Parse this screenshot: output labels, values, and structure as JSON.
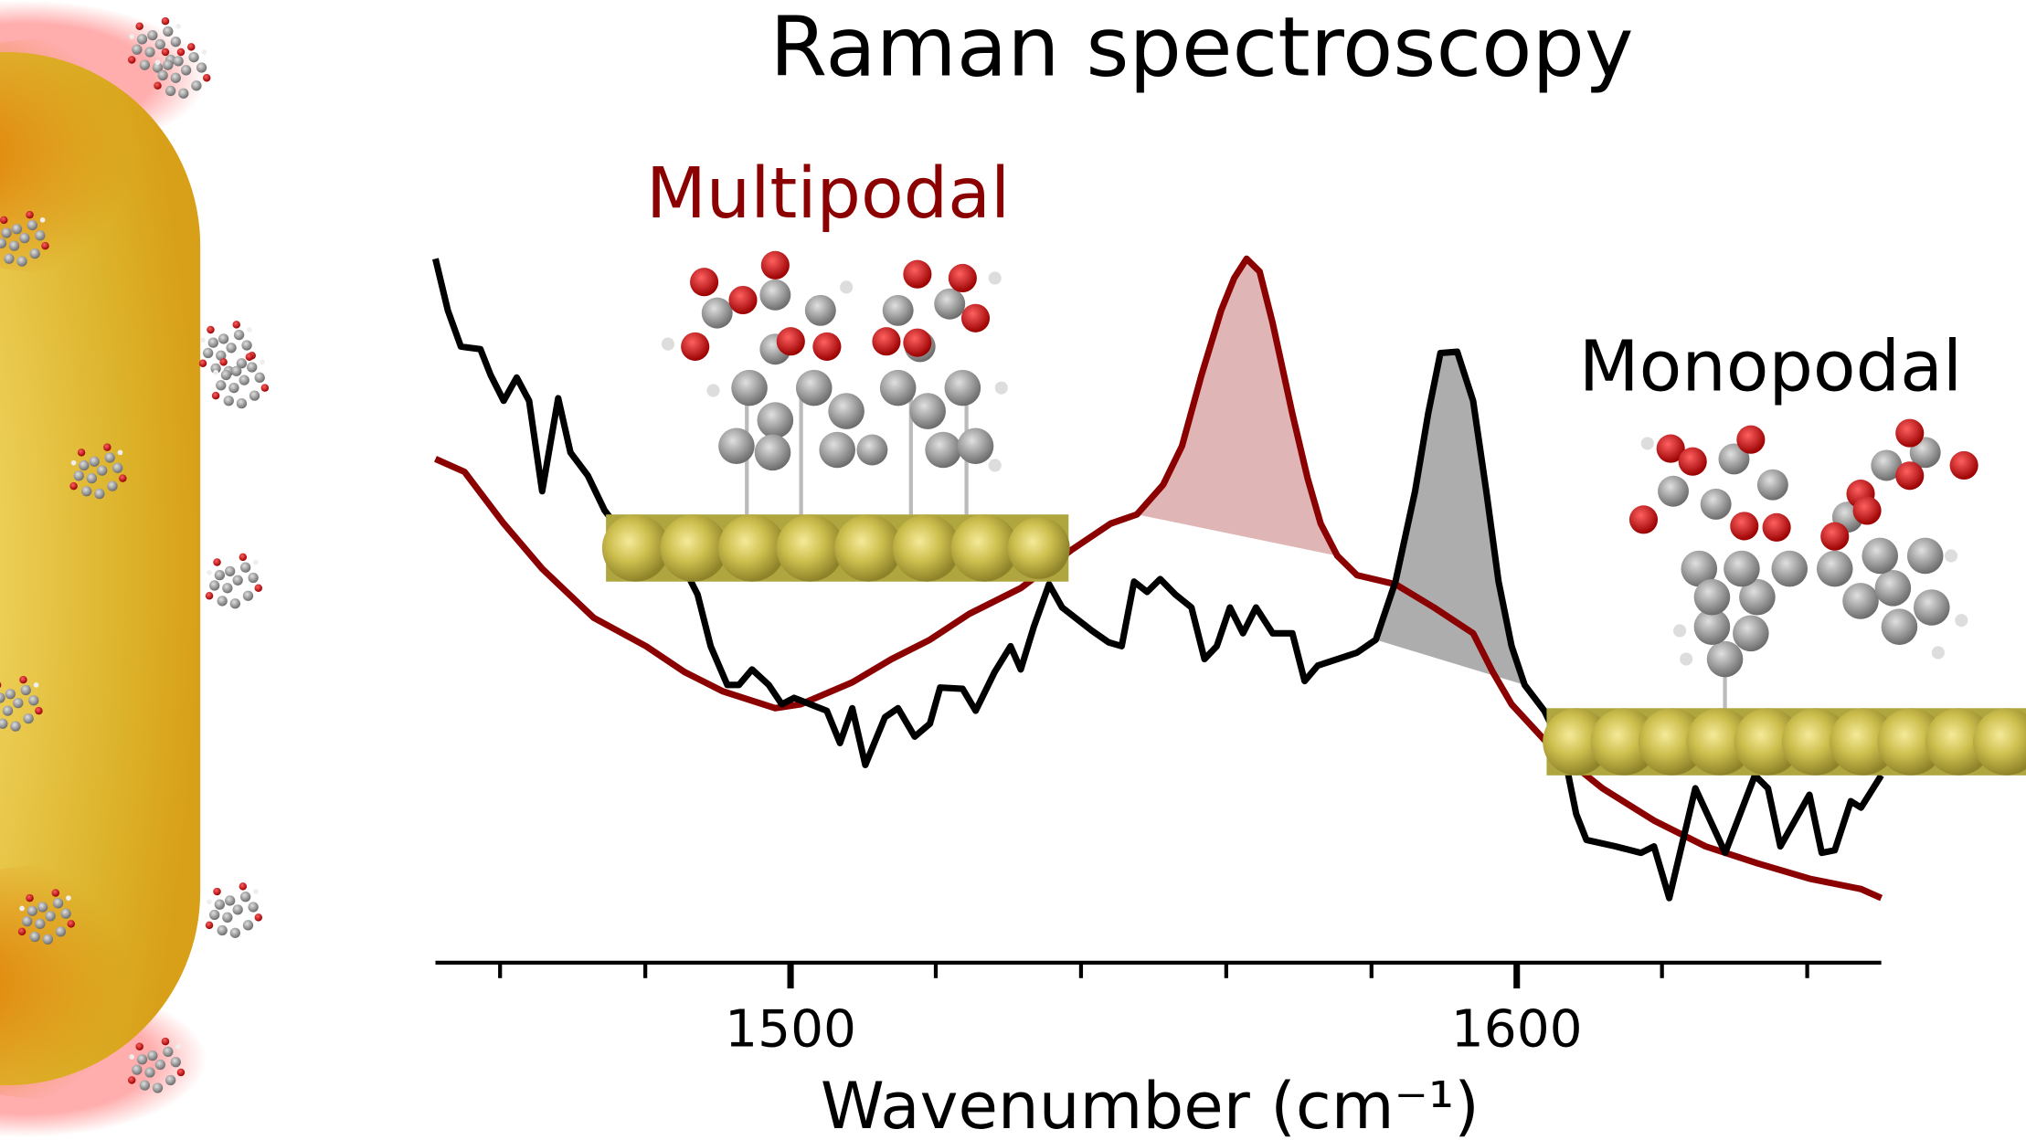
{
  "chart_data": {
    "type": "line",
    "title": "Raman spectroscopy",
    "x_label": "Wavenumber (cm⁻¹)",
    "xlim": [
      1451.1,
      1650.2
    ],
    "xticks": [
      1500,
      1600
    ],
    "x_minor_ticks": [
      1460,
      1480,
      1520,
      1540,
      1560,
      1580,
      1620,
      1640
    ],
    "ylim": [
      0,
      550
    ],
    "series": [
      {
        "name": "Multipodal",
        "color": "#8b0000",
        "x": [
          1451.1,
          1455.1,
          1460.5,
          1465.8,
          1472.9,
          1480.1,
          1485.4,
          1490.7,
          1497.9,
          1501.4,
          1508.5,
          1513.9,
          1519.2,
          1524.6,
          1531.7,
          1538.8,
          1544.1,
          1547.7,
          1551.3,
          1553.9,
          1556.6,
          1559.3,
          1561.1,
          1562.8,
          1564.6,
          1566.4,
          1569.1,
          1571.2,
          1573.0,
          1575.3,
          1578.0,
          1583.3,
          1588.6,
          1594.0,
          1596.7,
          1599.3,
          1604.7,
          1611.8,
          1618.9,
          1626.0,
          1633.1,
          1640.3,
          1647.4,
          1650.2
        ],
        "values": [
          390,
          380,
          340,
          305,
          267,
          245,
          225,
          210,
          197,
          200,
          217,
          235,
          250,
          270,
          290,
          320,
          340,
          347,
          370,
          400,
          455,
          505,
          530,
          545,
          535,
          495,
          425,
          375,
          340,
          315,
          300,
          293,
          275,
          255,
          225,
          200,
          167,
          135,
          110,
          90,
          77,
          65,
          57,
          50
        ]
      },
      {
        "name": "Monopodal",
        "color": "#000000",
        "x": [
          1451.1,
          1452.8,
          1454.6,
          1457.3,
          1458.7,
          1460.5,
          1462.3,
          1464.0,
          1465.8,
          1468.0,
          1469.7,
          1472.1,
          1474.4,
          1476.5,
          1481.8,
          1484.5,
          1487.2,
          1489.0,
          1491.3,
          1492.9,
          1494.7,
          1497.0,
          1498.8,
          1500.5,
          1505.0,
          1506.8,
          1508.5,
          1510.3,
          1513.0,
          1514.8,
          1517.1,
          1519.2,
          1520.6,
          1523.7,
          1525.5,
          1528.1,
          1530.3,
          1531.7,
          1533.5,
          1535.6,
          1537.4,
          1541.5,
          1543.8,
          1545.6,
          1547.3,
          1549.1,
          1550.9,
          1553.0,
          1555.2,
          1557.0,
          1558.7,
          1560.5,
          1562.3,
          1564.1,
          1566.4,
          1569.1,
          1570.8,
          1572.6,
          1578.0,
          1580.6,
          1583.3,
          1586.0,
          1587.8,
          1589.5,
          1591.8,
          1594.0,
          1595.8,
          1597.5,
          1599.3,
          1601.1,
          1603.8,
          1606.4,
          1608.2,
          1609.6,
          1613.6,
          1617.1,
          1618.9,
          1621.0,
          1624.6,
          1628.7,
          1632.8,
          1634.6,
          1636.3,
          1640.3,
          1642.0,
          1643.8,
          1646.0,
          1647.4,
          1650.2
        ],
        "values": [
          545,
          505,
          477,
          475,
          455,
          435,
          453,
          435,
          365,
          437,
          395,
          377,
          350,
          335,
          315,
          315,
          285,
          245,
          215,
          215,
          227,
          215,
          200,
          205,
          195,
          170,
          197,
          153,
          190,
          197,
          175,
          185,
          213,
          212,
          195,
          225,
          245,
          227,
          260,
          293,
          275,
          257,
          248,
          245,
          295,
          287,
          297,
          285,
          275,
          235,
          245,
          275,
          255,
          275,
          255,
          255,
          218,
          230,
          240,
          250,
          295,
          365,
          425,
          472,
          473,
          435,
          365,
          295,
          245,
          215,
          195,
          165,
          115,
          95,
          90,
          85,
          90,
          50,
          135,
          85,
          145,
          135,
          90,
          130,
          85,
          87,
          125,
          120,
          145
        ]
      }
    ]
  }
}
